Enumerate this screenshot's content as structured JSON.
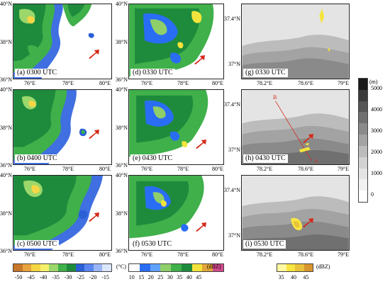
{
  "col1": {
    "lat_ticks": [
      "40°N",
      "38°N",
      "36°N"
    ],
    "lon_ticks": [
      "76°E",
      "78°E",
      "80°E"
    ],
    "panels": [
      {
        "label": "(a) 0300 UTC"
      },
      {
        "label": "(b) 0400 UTC"
      },
      {
        "label": "(c) 0500 UTC"
      }
    ]
  },
  "col2": {
    "lat_ticks": [
      "40°N",
      "38°N",
      "36°N"
    ],
    "lon_ticks": [
      "76°E",
      "78°E",
      "80°E"
    ],
    "panels": [
      {
        "label": "(d) 0330 UTC"
      },
      {
        "label": "(e) 0430 UTC"
      },
      {
        "label": "(f) 0530 UTC"
      }
    ]
  },
  "col3": {
    "lat_ticks": [
      "37.4°N",
      "37°N"
    ],
    "lon_ticks": [
      "78.2°E",
      "78.6°E",
      "79°E"
    ],
    "panels": [
      {
        "label": "(g) 0330 UTC"
      },
      {
        "label": "(h) 0430 UTC",
        "line_labels": [
          "B",
          "A"
        ]
      },
      {
        "label": "(i) 0530 UTC"
      }
    ]
  },
  "terrain_bar": {
    "unit": "(m)",
    "labels": [
      "5000",
      "4000",
      "3000",
      "2000",
      "1000",
      "0"
    ],
    "colors": [
      "#1a1a1a",
      "#3a3a3a",
      "#555555",
      "#707070",
      "#8a8a8a",
      "#a3a3a3",
      "#bcbcbc",
      "#d2d2d2",
      "#e4e4e4",
      "#f2f2f2",
      "#ffffff"
    ]
  },
  "temp_bar": {
    "unit": "(°C)",
    "labels": [
      "-50",
      "-45",
      "-40",
      "-35",
      "-30",
      "-25",
      "-20",
      "-15"
    ],
    "colors": [
      "#c7782a",
      "#e8a33d",
      "#f5d645",
      "#f7f06a",
      "#9bd76b",
      "#3fb04a",
      "#1e8a3c",
      "#2a5fd6",
      "#5a86f0",
      "#9bb6f6",
      "#dbe5fb"
    ]
  },
  "refl_bar": {
    "unit": "(dBZ)",
    "labels": [
      "10",
      "15",
      "20",
      "25",
      "30",
      "35",
      "40",
      "45"
    ],
    "colors": [
      "#ffffff",
      "#2a6df5",
      "#5fa2ff",
      "#8fcf6a",
      "#3fb04a",
      "#1e8a3c",
      "#f5e33d",
      "#e2a63b",
      "#d24a8e"
    ]
  },
  "small_bar": {
    "unit": "(dBZ)",
    "labels": [
      "35",
      "40",
      "45"
    ],
    "colors": [
      "#fff9a0",
      "#f7e541",
      "#e8c23a",
      "#d7962e"
    ]
  }
}
